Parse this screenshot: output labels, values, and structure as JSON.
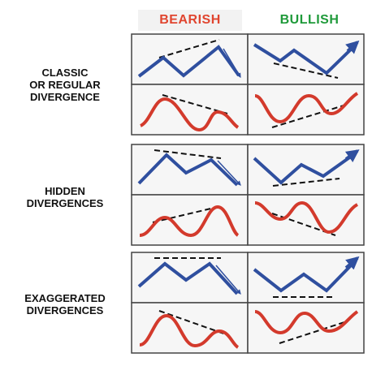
{
  "headers": {
    "bearish": "BEARISH",
    "bullish": "BULLISH"
  },
  "colors": {
    "bearish": "#e0452f",
    "bullish": "#1f9a3a",
    "price_line": "#2f4f9f",
    "oscillator_line": "#d33a2c",
    "trendline": "#111111",
    "grid": "#444444",
    "panel_bg": "#f6f6f6"
  },
  "rows": [
    {
      "label_lines": [
        "CLASSIC",
        "OR REGULAR",
        "DIVERGENCE"
      ]
    },
    {
      "label_lines": [
        "HIDDEN",
        "DIVERGENCES"
      ]
    },
    {
      "label_lines": [
        "EXAGGERATED",
        "DIVERGENCES"
      ]
    }
  ]
}
